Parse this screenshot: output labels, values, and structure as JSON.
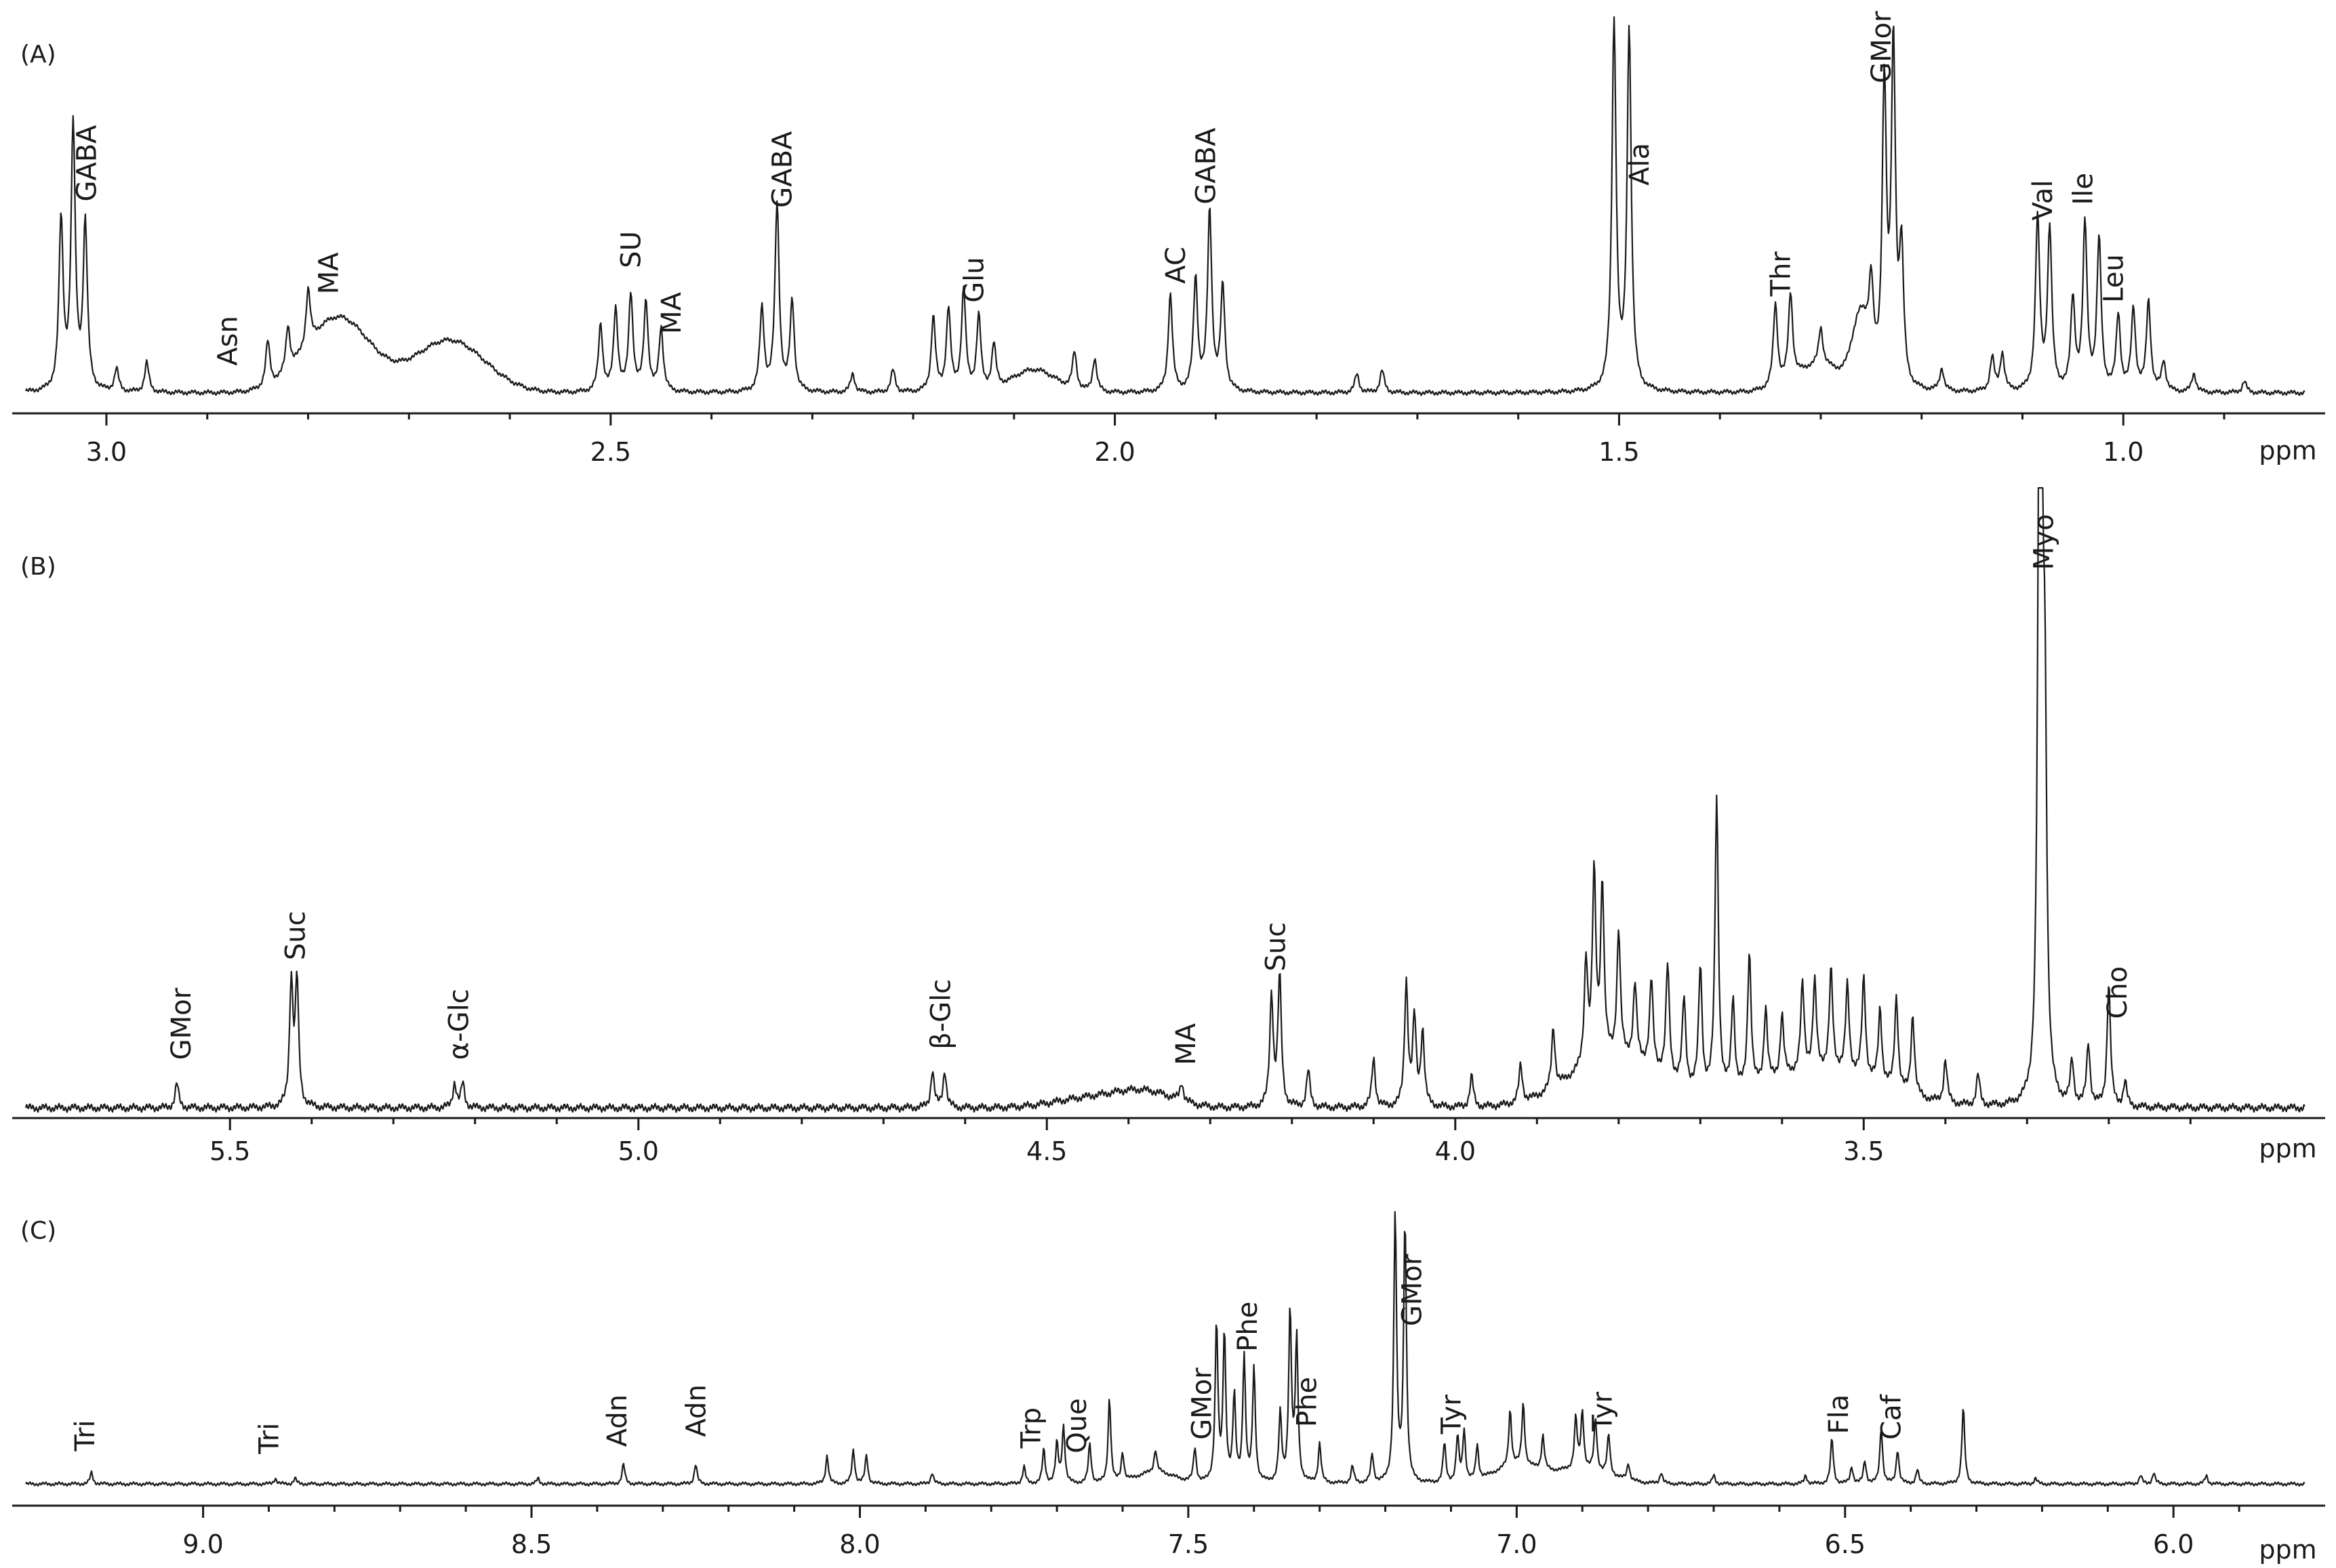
{
  "chart_data": [
    {
      "type": "line",
      "panel_label": "(A)",
      "x_unit": "ppm",
      "xlim": [
        3.08,
        0.82
      ],
      "x_reversed": true,
      "ticks": [
        "3.0",
        "2.5",
        "2.0",
        "1.5",
        "1.0"
      ],
      "annotations": [
        {
          "label": "GABA",
          "ppm": 3.02
        },
        {
          "label": "Asn",
          "ppm": 2.88
        },
        {
          "label": "MA",
          "ppm": 2.78
        },
        {
          "label": "SU",
          "ppm": 2.48
        },
        {
          "label": "MA",
          "ppm": 2.44
        },
        {
          "label": "GABA",
          "ppm": 2.33
        },
        {
          "label": "Glu",
          "ppm": 2.14
        },
        {
          "label": "AC",
          "ppm": 1.94
        },
        {
          "label": "GABA",
          "ppm": 1.91
        },
        {
          "label": "Ala",
          "ppm": 1.48
        },
        {
          "label": "Thr",
          "ppm": 1.34
        },
        {
          "label": "GMor",
          "ppm": 1.24
        },
        {
          "label": "Val",
          "ppm": 1.08
        },
        {
          "label": "Ile",
          "ppm": 1.04
        },
        {
          "label": "Leu",
          "ppm": 1.01
        }
      ],
      "peaks": [
        {
          "ppm": 3.045,
          "h": 0.45
        },
        {
          "ppm": 3.033,
          "h": 0.7
        },
        {
          "ppm": 3.021,
          "h": 0.44
        },
        {
          "ppm": 2.99,
          "h": 0.06
        },
        {
          "ppm": 2.96,
          "h": 0.08
        },
        {
          "ppm": 2.84,
          "h": 0.12
        },
        {
          "ppm": 2.82,
          "h": 0.12
        },
        {
          "ppm": 2.8,
          "h": 0.15
        },
        {
          "ppm": 2.51,
          "h": 0.18
        },
        {
          "ppm": 2.495,
          "h": 0.22
        },
        {
          "ppm": 2.48,
          "h": 0.26
        },
        {
          "ppm": 2.465,
          "h": 0.24
        },
        {
          "ppm": 2.45,
          "h": 0.17
        },
        {
          "ppm": 2.35,
          "h": 0.22
        },
        {
          "ppm": 2.335,
          "h": 0.5
        },
        {
          "ppm": 2.32,
          "h": 0.24
        },
        {
          "ppm": 2.26,
          "h": 0.05
        },
        {
          "ppm": 2.22,
          "h": 0.06
        },
        {
          "ppm": 2.18,
          "h": 0.2
        },
        {
          "ppm": 2.165,
          "h": 0.22
        },
        {
          "ppm": 2.15,
          "h": 0.27
        },
        {
          "ppm": 2.135,
          "h": 0.2
        },
        {
          "ppm": 2.12,
          "h": 0.12
        },
        {
          "ppm": 2.04,
          "h": 0.1
        },
        {
          "ppm": 2.02,
          "h": 0.09
        },
        {
          "ppm": 1.945,
          "h": 0.26
        },
        {
          "ppm": 1.92,
          "h": 0.3
        },
        {
          "ppm": 1.906,
          "h": 0.48
        },
        {
          "ppm": 1.893,
          "h": 0.28
        },
        {
          "ppm": 1.76,
          "h": 0.05
        },
        {
          "ppm": 1.735,
          "h": 0.06
        },
        {
          "ppm": 1.505,
          "h": 0.99
        },
        {
          "ppm": 1.49,
          "h": 0.96
        },
        {
          "ppm": 1.345,
          "h": 0.22
        },
        {
          "ppm": 1.33,
          "h": 0.23
        },
        {
          "ppm": 1.3,
          "h": 0.1
        },
        {
          "ppm": 1.25,
          "h": 0.2
        },
        {
          "ppm": 1.237,
          "h": 0.8
        },
        {
          "ppm": 1.228,
          "h": 0.9
        },
        {
          "ppm": 1.22,
          "h": 0.35
        },
        {
          "ppm": 1.18,
          "h": 0.06
        },
        {
          "ppm": 1.13,
          "h": 0.09
        },
        {
          "ppm": 1.12,
          "h": 0.1
        },
        {
          "ppm": 1.085,
          "h": 0.46
        },
        {
          "ppm": 1.073,
          "h": 0.43
        },
        {
          "ppm": 1.05,
          "h": 0.24
        },
        {
          "ppm": 1.038,
          "h": 0.44
        },
        {
          "ppm": 1.024,
          "h": 0.4
        },
        {
          "ppm": 1.005,
          "h": 0.2
        },
        {
          "ppm": 0.99,
          "h": 0.22
        },
        {
          "ppm": 0.975,
          "h": 0.24
        },
        {
          "ppm": 0.96,
          "h": 0.08
        },
        {
          "ppm": 0.93,
          "h": 0.05
        },
        {
          "ppm": 0.88,
          "h": 0.03
        }
      ],
      "humps": [
        {
          "ppm": 2.77,
          "h": 0.2,
          "w": 0.045
        },
        {
          "ppm": 2.66,
          "h": 0.14,
          "w": 0.05
        },
        {
          "ppm": 2.08,
          "h": 0.06,
          "w": 0.03
        },
        {
          "ppm": 1.3,
          "h": 0.07,
          "w": 0.035
        },
        {
          "ppm": 1.26,
          "h": 0.18,
          "w": 0.012
        }
      ]
    },
    {
      "type": "line",
      "panel_label": "(B)",
      "x_unit": "ppm",
      "xlim": [
        5.75,
        2.96
      ],
      "x_reversed": true,
      "ticks": [
        "5.5",
        "5.0",
        "4.5",
        "4.0",
        "3.5"
      ],
      "annotations": [
        {
          "label": "GMor",
          "ppm": 5.56
        },
        {
          "label": "Suc",
          "ppm": 5.42
        },
        {
          "label": "α-Glc",
          "ppm": 5.22
        },
        {
          "label": "β-Glc",
          "ppm": 4.63
        },
        {
          "label": "MA",
          "ppm": 4.33
        },
        {
          "label": "Suc",
          "ppm": 4.22
        },
        {
          "label": "Myo",
          "ppm": 3.28
        },
        {
          "label": "Cho",
          "ppm": 3.19
        }
      ],
      "peaks": [
        {
          "ppm": 5.565,
          "h": 0.04
        },
        {
          "ppm": 5.425,
          "h": 0.2
        },
        {
          "ppm": 5.418,
          "h": 0.2
        },
        {
          "ppm": 5.225,
          "h": 0.04
        },
        {
          "ppm": 5.215,
          "h": 0.04
        },
        {
          "ppm": 4.64,
          "h": 0.06
        },
        {
          "ppm": 4.625,
          "h": 0.06
        },
        {
          "ppm": 4.335,
          "h": 0.03
        },
        {
          "ppm": 4.225,
          "h": 0.18
        },
        {
          "ppm": 4.215,
          "h": 0.21
        },
        {
          "ppm": 4.18,
          "h": 0.06
        },
        {
          "ppm": 4.1,
          "h": 0.08
        },
        {
          "ppm": 4.06,
          "h": 0.2
        },
        {
          "ppm": 4.05,
          "h": 0.14
        },
        {
          "ppm": 4.04,
          "h": 0.12
        },
        {
          "ppm": 3.98,
          "h": 0.05
        },
        {
          "ppm": 3.92,
          "h": 0.06
        },
        {
          "ppm": 3.88,
          "h": 0.1
        },
        {
          "ppm": 3.84,
          "h": 0.17
        },
        {
          "ppm": 3.83,
          "h": 0.3
        },
        {
          "ppm": 3.82,
          "h": 0.28
        },
        {
          "ppm": 3.8,
          "h": 0.2
        },
        {
          "ppm": 3.78,
          "h": 0.12
        },
        {
          "ppm": 3.76,
          "h": 0.14
        },
        {
          "ppm": 3.74,
          "h": 0.18
        },
        {
          "ppm": 3.72,
          "h": 0.14
        },
        {
          "ppm": 3.7,
          "h": 0.2
        },
        {
          "ppm": 3.68,
          "h": 0.48
        },
        {
          "ppm": 3.66,
          "h": 0.15
        },
        {
          "ppm": 3.64,
          "h": 0.22
        },
        {
          "ppm": 3.62,
          "h": 0.12
        },
        {
          "ppm": 3.6,
          "h": 0.1
        },
        {
          "ppm": 3.575,
          "h": 0.14
        },
        {
          "ppm": 3.56,
          "h": 0.14
        },
        {
          "ppm": 3.54,
          "h": 0.16
        },
        {
          "ppm": 3.52,
          "h": 0.14
        },
        {
          "ppm": 3.5,
          "h": 0.16
        },
        {
          "ppm": 3.48,
          "h": 0.12
        },
        {
          "ppm": 3.46,
          "h": 0.15
        },
        {
          "ppm": 3.44,
          "h": 0.13
        },
        {
          "ppm": 3.4,
          "h": 0.07
        },
        {
          "ppm": 3.36,
          "h": 0.05
        },
        {
          "ppm": 3.285,
          "h": 0.98
        },
        {
          "ppm": 3.282,
          "h": 0.7
        },
        {
          "ppm": 3.278,
          "h": 0.5
        },
        {
          "ppm": 3.245,
          "h": 0.07
        },
        {
          "ppm": 3.225,
          "h": 0.1
        },
        {
          "ppm": 3.2,
          "h": 0.2
        },
        {
          "ppm": 3.18,
          "h": 0.04
        }
      ],
      "humps": [
        {
          "ppm": 4.45,
          "h": 0.015,
          "w": 0.06
        },
        {
          "ppm": 4.38,
          "h": 0.025,
          "w": 0.05
        },
        {
          "ppm": 3.8,
          "h": 0.08,
          "w": 0.08
        },
        {
          "ppm": 3.55,
          "h": 0.06,
          "w": 0.1
        }
      ]
    },
    {
      "type": "line",
      "panel_label": "(C)",
      "x_unit": "ppm",
      "xlim": [
        9.27,
        5.8
      ],
      "x_reversed": true,
      "ticks": [
        "9.0",
        "8.5",
        "8.0",
        "7.5",
        "7.0",
        "6.5",
        "6.0"
      ],
      "annotations": [
        {
          "label": "Tri",
          "ppm": 9.18
        },
        {
          "label": "Tri",
          "ppm": 8.9
        },
        {
          "label": "Adn",
          "ppm": 8.37
        },
        {
          "label": "Adn",
          "ppm": 8.25
        },
        {
          "label": "Trp",
          "ppm": 7.74
        },
        {
          "label": "Que",
          "ppm": 7.67
        },
        {
          "label": "GMor",
          "ppm": 7.48
        },
        {
          "label": "Phe",
          "ppm": 7.41
        },
        {
          "label": "Phe",
          "ppm": 7.32
        },
        {
          "label": "GMor",
          "ppm": 7.16
        },
        {
          "label": "Tyr",
          "ppm": 7.1
        },
        {
          "label": "Tyr",
          "ppm": 6.87
        },
        {
          "label": "Fla",
          "ppm": 6.51
        },
        {
          "label": "Caf",
          "ppm": 6.43
        }
      ],
      "peaks": [
        {
          "ppm": 9.17,
          "h": 0.04
        },
        {
          "ppm": 8.89,
          "h": 0.02
        },
        {
          "ppm": 8.86,
          "h": 0.02
        },
        {
          "ppm": 8.49,
          "h": 0.02
        },
        {
          "ppm": 8.36,
          "h": 0.07
        },
        {
          "ppm": 8.25,
          "h": 0.07
        },
        {
          "ppm": 8.05,
          "h": 0.1
        },
        {
          "ppm": 8.01,
          "h": 0.12
        },
        {
          "ppm": 7.99,
          "h": 0.1
        },
        {
          "ppm": 7.89,
          "h": 0.04
        },
        {
          "ppm": 7.75,
          "h": 0.06
        },
        {
          "ppm": 7.72,
          "h": 0.12
        },
        {
          "ppm": 7.7,
          "h": 0.14
        },
        {
          "ppm": 7.69,
          "h": 0.2
        },
        {
          "ppm": 7.65,
          "h": 0.14
        },
        {
          "ppm": 7.62,
          "h": 0.3
        },
        {
          "ppm": 7.6,
          "h": 0.1
        },
        {
          "ppm": 7.55,
          "h": 0.08
        },
        {
          "ppm": 7.49,
          "h": 0.12
        },
        {
          "ppm": 7.457,
          "h": 0.56
        },
        {
          "ppm": 7.445,
          "h": 0.52
        },
        {
          "ppm": 7.43,
          "h": 0.3
        },
        {
          "ppm": 7.415,
          "h": 0.44
        },
        {
          "ppm": 7.4,
          "h": 0.4
        },
        {
          "ppm": 7.36,
          "h": 0.24
        },
        {
          "ppm": 7.345,
          "h": 0.6
        },
        {
          "ppm": 7.335,
          "h": 0.5
        },
        {
          "ppm": 7.3,
          "h": 0.14
        },
        {
          "ppm": 7.25,
          "h": 0.06
        },
        {
          "ppm": 7.22,
          "h": 0.1
        },
        {
          "ppm": 7.185,
          "h": 0.95
        },
        {
          "ppm": 7.17,
          "h": 0.92
        },
        {
          "ppm": 7.11,
          "h": 0.14
        },
        {
          "ppm": 7.09,
          "h": 0.16
        },
        {
          "ppm": 7.08,
          "h": 0.18
        },
        {
          "ppm": 7.06,
          "h": 0.12
        },
        {
          "ppm": 7.01,
          "h": 0.2
        },
        {
          "ppm": 6.99,
          "h": 0.22
        },
        {
          "ppm": 6.96,
          "h": 0.12
        },
        {
          "ppm": 6.91,
          "h": 0.18
        },
        {
          "ppm": 6.9,
          "h": 0.2
        },
        {
          "ppm": 6.88,
          "h": 0.18
        },
        {
          "ppm": 6.86,
          "h": 0.14
        },
        {
          "ppm": 6.83,
          "h": 0.06
        },
        {
          "ppm": 6.78,
          "h": 0.04
        },
        {
          "ppm": 6.7,
          "h": 0.03
        },
        {
          "ppm": 6.56,
          "h": 0.03
        },
        {
          "ppm": 6.52,
          "h": 0.16
        },
        {
          "ppm": 6.49,
          "h": 0.06
        },
        {
          "ppm": 6.47,
          "h": 0.08
        },
        {
          "ppm": 6.445,
          "h": 0.2
        },
        {
          "ppm": 6.42,
          "h": 0.12
        },
        {
          "ppm": 6.39,
          "h": 0.05
        },
        {
          "ppm": 6.32,
          "h": 0.27
        },
        {
          "ppm": 6.21,
          "h": 0.02
        },
        {
          "ppm": 6.05,
          "h": 0.03
        },
        {
          "ppm": 6.03,
          "h": 0.04
        },
        {
          "ppm": 5.95,
          "h": 0.03
        }
      ],
      "humps": [
        {
          "ppm": 7.55,
          "h": 0.04,
          "w": 0.04
        },
        {
          "ppm": 7.0,
          "h": 0.06,
          "w": 0.05
        },
        {
          "ppm": 6.9,
          "h": 0.05,
          "w": 0.06
        }
      ]
    }
  ]
}
